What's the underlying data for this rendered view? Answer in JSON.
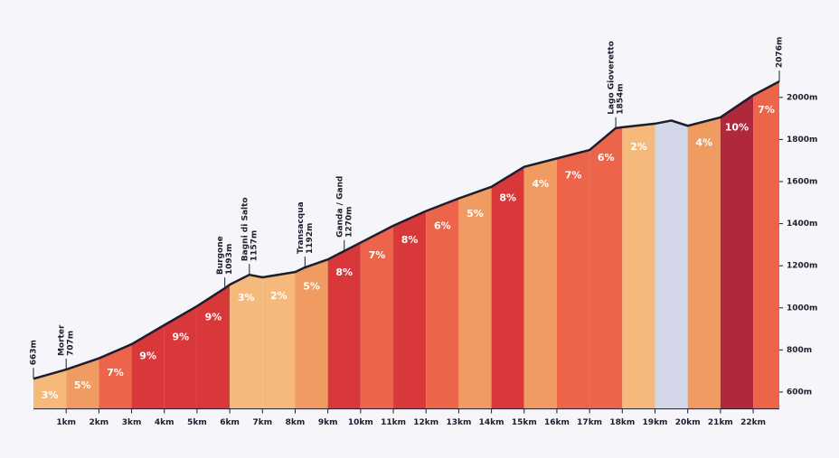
{
  "chart_data": {
    "type": "elevation-profile",
    "x": [
      0,
      1,
      2,
      3,
      4,
      5,
      5.85,
      6,
      6.6,
      7,
      8,
      8.3,
      9,
      9.5,
      10,
      11,
      12,
      13,
      14,
      15,
      16,
      17,
      17.8,
      18,
      19,
      19.5,
      20,
      21,
      22,
      22.8
    ],
    "values": [
      663,
      707,
      760,
      827,
      918,
      1008,
      1093,
      1110,
      1157,
      1145,
      1170,
      1192,
      1230,
      1270,
      1310,
      1390,
      1460,
      1520,
      1575,
      1670,
      1710,
      1750,
      1854,
      1858,
      1875,
      1890,
      1865,
      1905,
      2010,
      2076
    ],
    "line_color": "#1c1e2e",
    "segments": {
      "bounds": [
        0,
        1,
        2,
        3,
        4,
        5,
        6,
        7,
        8,
        9,
        10,
        11,
        12,
        13,
        14,
        15,
        16,
        17,
        18,
        19,
        20,
        21,
        22,
        22.8
      ],
      "values": [
        3,
        5,
        7,
        9,
        9,
        9,
        3,
        2,
        5,
        8,
        7,
        8,
        6,
        5,
        8,
        4,
        7,
        6,
        2,
        null,
        4,
        10,
        7
      ],
      "value_labels": [
        "3%",
        "5%",
        "7%",
        "9%",
        "9%",
        "9%",
        "3%",
        "2%",
        "5%",
        "8%",
        "7%",
        "8%",
        "6%",
        "5%",
        "8%",
        "4%",
        "7%",
        "6%",
        "2%",
        null,
        "4%",
        "10%",
        "7%"
      ],
      "colors": [
        "#f5b97c",
        "#f09b62",
        "#ec654b",
        "#d9383b",
        "#d9383b",
        "#d9383b",
        "#f5b97c",
        "#f5b97c",
        "#f09b62",
        "#d9383b",
        "#ec654b",
        "#d9383b",
        "#ec654b",
        "#f09b62",
        "#d9383b",
        "#f09b62",
        "#ec654b",
        "#ec654b",
        "#f5b97c",
        "#d4d6ea",
        "#f09b62",
        "#b0283b",
        "#ec654b"
      ]
    },
    "waypoints": [
      {
        "x": 0,
        "elevation": {
          "value": 663,
          "label": "663m"
        }
      },
      {
        "x": 1,
        "name": "Morter",
        "elevation": {
          "value": 707,
          "label": "707m"
        }
      },
      {
        "x": 5.85,
        "name": "Burgone",
        "elevation": {
          "value": 1093,
          "label": "1093m"
        }
      },
      {
        "x": 6.6,
        "name": "Bagni di Salto",
        "elevation": {
          "value": 1157,
          "label": "1157m"
        }
      },
      {
        "x": 8.3,
        "name": "Transacqua",
        "elevation": {
          "value": 1192,
          "label": "1192m"
        }
      },
      {
        "x": 9.5,
        "name": "Ganda / Gand",
        "elevation": {
          "value": 1270,
          "label": "1270m"
        }
      },
      {
        "x": 17.8,
        "name": "Lago Gioveretto",
        "elevation": {
          "value": 1854,
          "label": "1854m"
        }
      },
      {
        "x": 22.8,
        "elevation": {
          "value": 2076,
          "label": "2076m"
        }
      }
    ],
    "xlim": [
      0,
      22.8
    ],
    "xticks": [
      {
        "value": 1,
        "label": "1km"
      },
      {
        "value": 2,
        "label": "2km"
      },
      {
        "value": 3,
        "label": "3km"
      },
      {
        "value": 4,
        "label": "4km"
      },
      {
        "value": 5,
        "label": "5km"
      },
      {
        "value": 6,
        "label": "6km"
      },
      {
        "value": 7,
        "label": "7km"
      },
      {
        "value": 8,
        "label": "8km"
      },
      {
        "value": 9,
        "label": "9km"
      },
      {
        "value": 10,
        "label": "10km"
      },
      {
        "value": 11,
        "label": "11km"
      },
      {
        "value": 12,
        "label": "12km"
      },
      {
        "value": 13,
        "label": "13km"
      },
      {
        "value": 14,
        "label": "14km"
      },
      {
        "value": 15,
        "label": "15km"
      },
      {
        "value": 16,
        "label": "16km"
      },
      {
        "value": 17,
        "label": "17km"
      },
      {
        "value": 18,
        "label": "18km"
      },
      {
        "value": 19,
        "label": "19km"
      },
      {
        "value": 20,
        "label": "20km"
      },
      {
        "value": 21,
        "label": "21km"
      },
      {
        "value": 22,
        "label": "22km"
      }
    ],
    "ylim": [
      520,
      2100
    ],
    "yticks": [
      {
        "value": 600,
        "label": "600m"
      },
      {
        "value": 800,
        "label": "800m"
      },
      {
        "value": 1000,
        "label": "1000m"
      },
      {
        "value": 1200,
        "label": "1200m"
      },
      {
        "value": 1400,
        "label": "1400m"
      },
      {
        "value": 1600,
        "label": "1600m"
      },
      {
        "value": 1800,
        "label": "1800m"
      },
      {
        "value": 2000,
        "label": "2000m"
      }
    ]
  }
}
